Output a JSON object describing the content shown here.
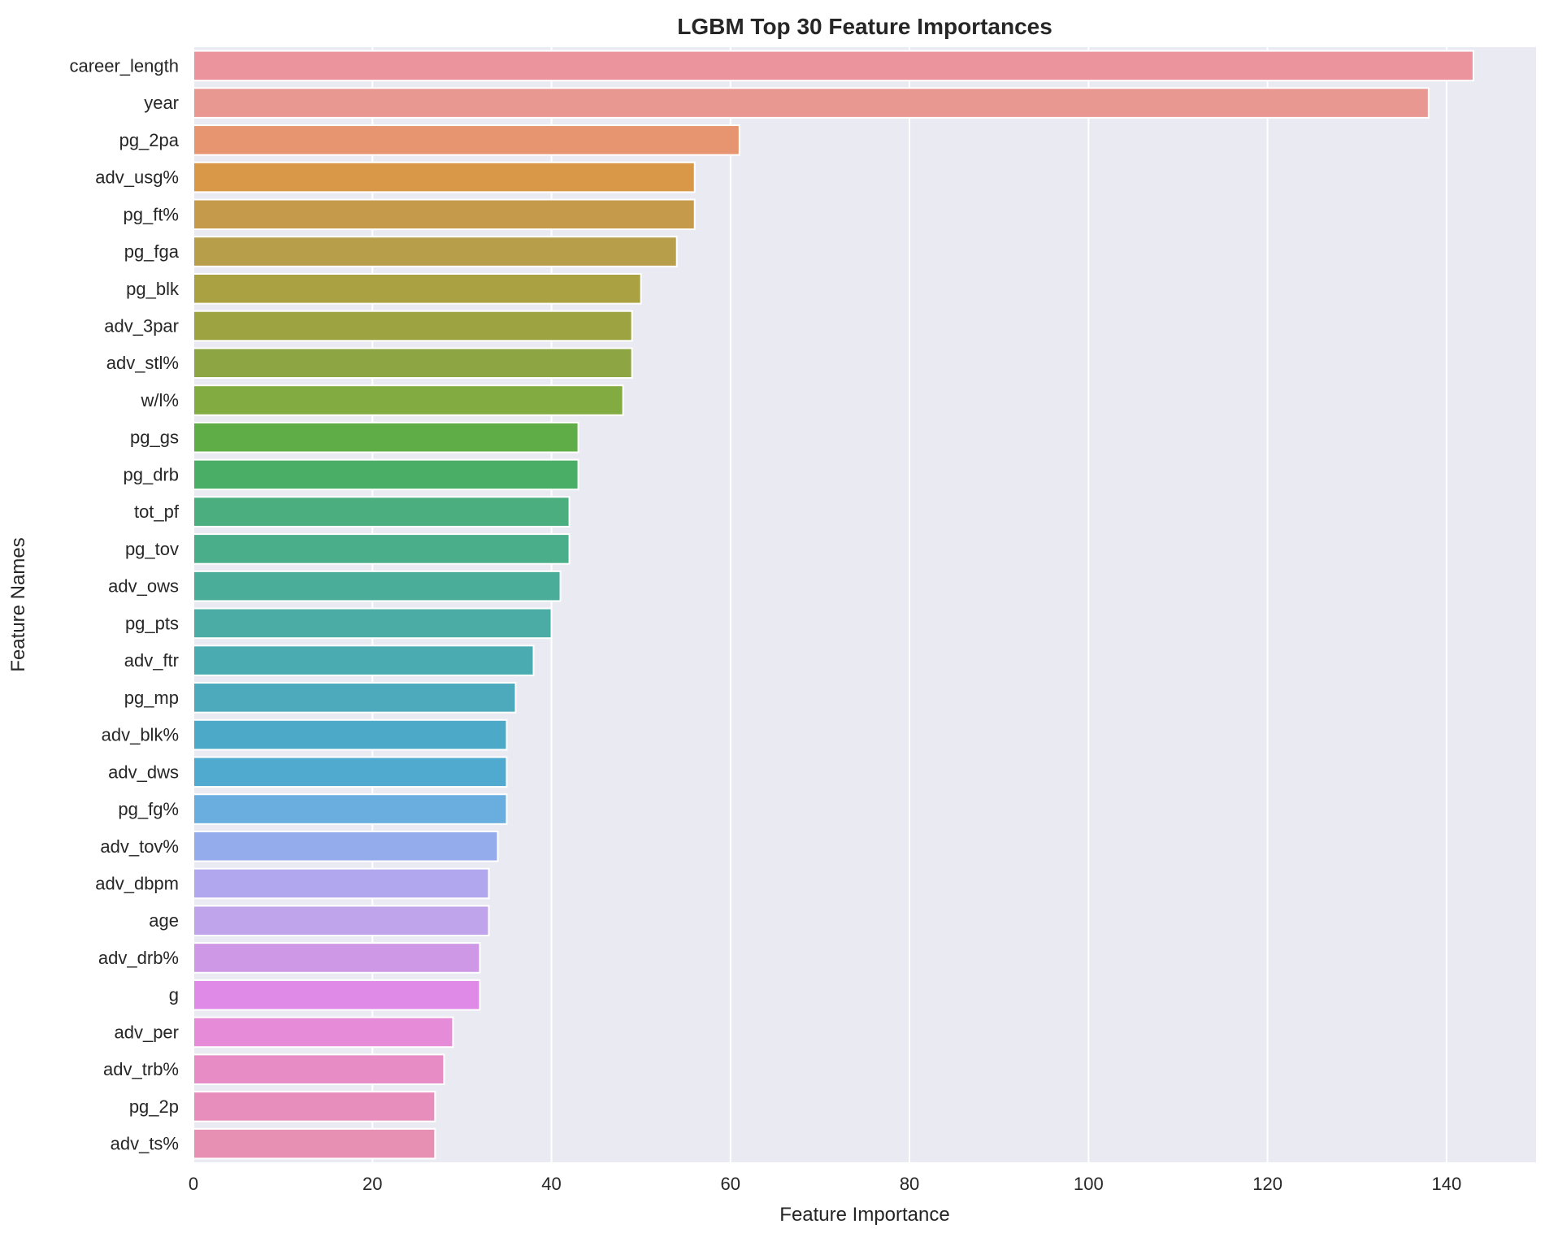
{
  "chart_data": {
    "type": "bar",
    "orientation": "horizontal",
    "title": "LGBM Top 30 Feature Importances",
    "xlabel": "Feature Importance",
    "ylabel": "Feature Names",
    "xlim": [
      0,
      150
    ],
    "xticks": [
      0,
      20,
      40,
      60,
      80,
      100,
      120,
      140
    ],
    "grid": true,
    "categories": [
      "career_length",
      "year",
      "pg_2pa",
      "adv_usg%",
      "pg_ft%",
      "pg_fga",
      "pg_blk",
      "adv_3par",
      "adv_stl%",
      "w/l%",
      "pg_gs",
      "pg_drb",
      "tot_pf",
      "pg_tov",
      "adv_ows",
      "pg_pts",
      "adv_ftr",
      "pg_mp",
      "adv_blk%",
      "adv_dws",
      "pg_fg%",
      "adv_tov%",
      "adv_dbpm",
      "age",
      "adv_drb%",
      "g",
      "adv_per",
      "adv_trb%",
      "pg_2p",
      "adv_ts%"
    ],
    "values": [
      143,
      138,
      61,
      56,
      56,
      54,
      50,
      49,
      49,
      48,
      43,
      43,
      42,
      42,
      41,
      40,
      38,
      36,
      35,
      35,
      35,
      34,
      33,
      33,
      32,
      32,
      29,
      28,
      27,
      27
    ],
    "colors": [
      "#eb949e",
      "#e89890",
      "#e69570",
      "#d99748",
      "#c59a4a",
      "#b69e4a",
      "#a9a142",
      "#9ea342",
      "#8ea544",
      "#82ab41",
      "#5fad46",
      "#4aae66",
      "#4bae7f",
      "#4aae8a",
      "#4aad99",
      "#4aaca5",
      "#4aabb0",
      "#4daabc",
      "#4caac8",
      "#50aad0",
      "#6aaee0",
      "#94aceb",
      "#b1a7ee",
      "#bfa4ec",
      "#cf98e6",
      "#df8ae7",
      "#e68bd8",
      "#e88cc6",
      "#e88ebd",
      "#e890b4"
    ]
  }
}
